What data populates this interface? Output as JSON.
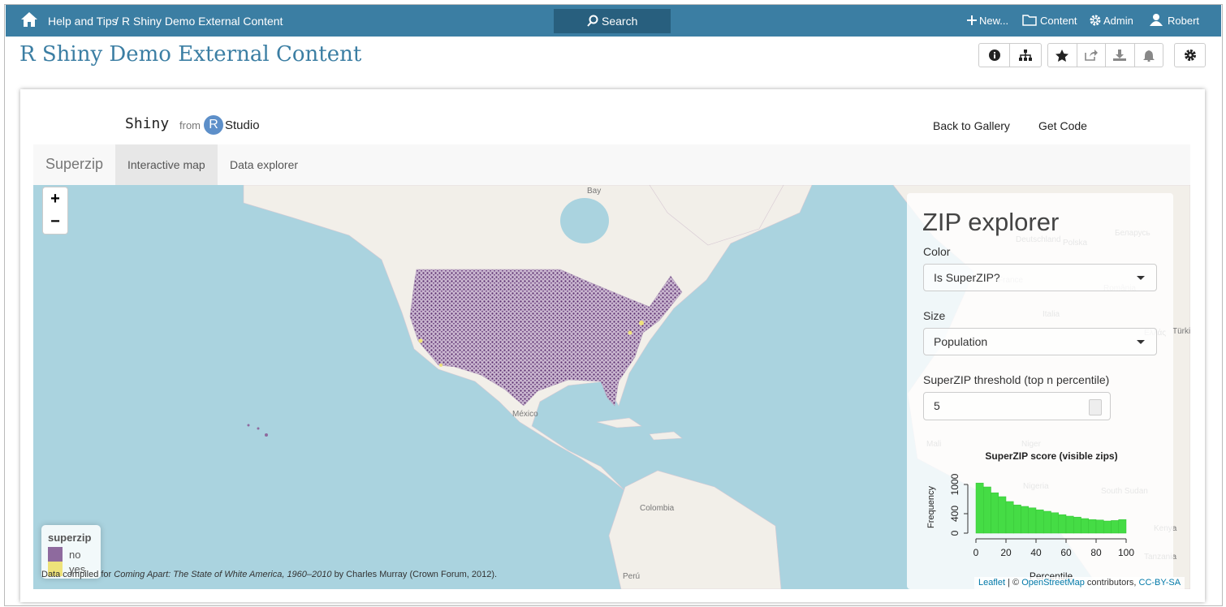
{
  "nav": {
    "breadcrumb": [
      "Help and Tips",
      "R Shiny Demo External Content"
    ],
    "separator": "/",
    "search": "Search",
    "menu": [
      "New...",
      "Content",
      "Admin",
      "Robert"
    ]
  },
  "page_title": "R Shiny Demo External Content",
  "app": {
    "brand": {
      "name": "Shiny",
      "from": "from",
      "r": "R",
      "studio": "Studio"
    },
    "links": [
      "Back to Gallery",
      "Get Code"
    ],
    "tabs": {
      "brand": "Superzip",
      "items": [
        "Interactive map",
        "Data explorer"
      ]
    }
  },
  "map": {
    "zoom": [
      "+",
      "−"
    ],
    "labels": [
      "Bay",
      "México",
      "Colombia",
      "Perú",
      "Deutschland",
      "France",
      "Polska",
      "Беларусь",
      "România",
      "Italia",
      "Ελλάς",
      "Türkiye",
      "Mali",
      "Niger",
      "Nigeria",
      "South Sudan",
      "Kenya",
      "Tanzania"
    ],
    "legend": {
      "title": "superzip",
      "items": [
        "no",
        "yes"
      ],
      "colors": [
        "#8e6a9e",
        "#eee27a"
      ]
    },
    "attribution": {
      "prefix": "Data compiled for",
      "book": "Coming Apart: The State of White America, 1960–2010",
      "suffix": "by Charles Murray (Crown Forum, 2012).",
      "leaflet": "Leaflet",
      "sep": "| ©",
      "osm": "OpenStreetMap",
      "contributors": "contributors,",
      "license": "CC-BY-SA"
    }
  },
  "panel": {
    "title": "ZIP explorer",
    "color_label": "Color",
    "color_value": "Is SuperZIP?",
    "size_label": "Size",
    "size_value": "Population",
    "threshold_label": "SuperZIP threshold (top n percentile)",
    "threshold_value": 5,
    "histogram": {
      "type": "histogram",
      "title": "SuperZIP score (visible zips)",
      "xlabel": "Percentile",
      "ylabel": "Frequency",
      "bins": [
        0,
        5,
        10,
        15,
        20,
        25,
        30,
        35,
        40,
        45,
        50,
        55,
        60,
        65,
        70,
        75,
        80,
        85,
        90,
        95,
        100
      ],
      "counts": [
        1030,
        950,
        830,
        750,
        650,
        580,
        550,
        520,
        480,
        450,
        420,
        380,
        350,
        330,
        300,
        280,
        270,
        250,
        260,
        280
      ],
      "xlim": [
        0,
        100
      ],
      "ylim": [
        0,
        1050
      ],
      "xticks": [
        0,
        20,
        40,
        60,
        80,
        100
      ],
      "yticks": [
        0,
        400,
        1000
      ],
      "color": "#45dc45"
    }
  }
}
